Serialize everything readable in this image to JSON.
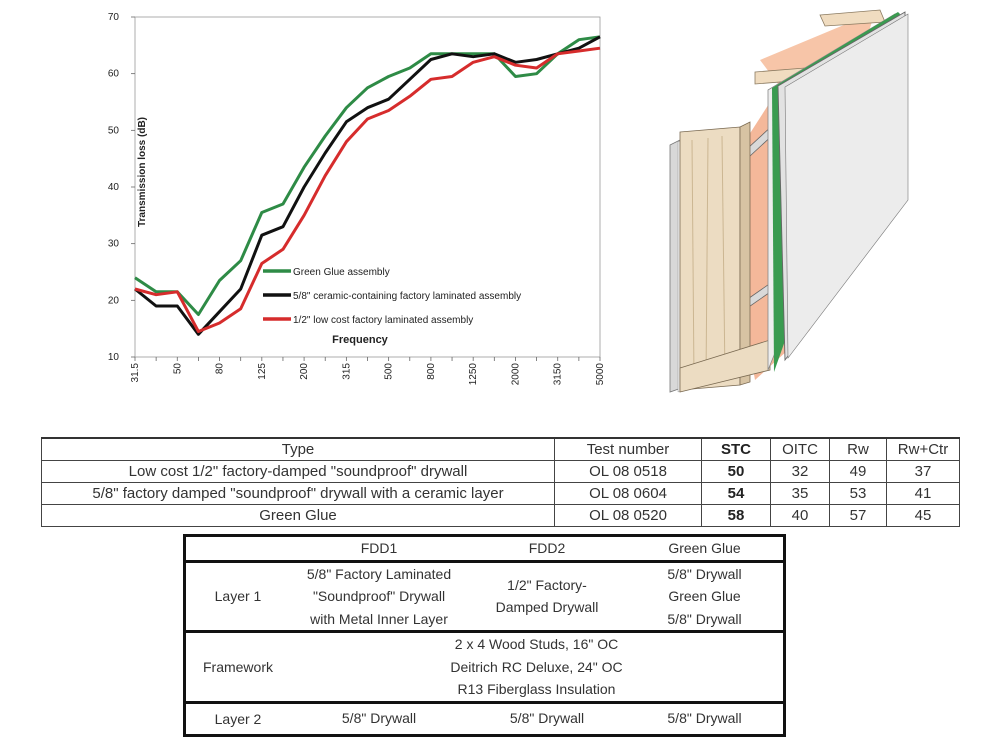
{
  "chart_data": {
    "type": "line",
    "title": "",
    "xlabel": "Frequency",
    "ylabel": "Transmission loss (dB)",
    "ylim": [
      10,
      70
    ],
    "yticks": [
      10,
      20,
      30,
      40,
      50,
      60,
      70
    ],
    "x": [
      "31.5",
      "40",
      "50",
      "63",
      "80",
      "100",
      "125",
      "160",
      "200",
      "250",
      "315",
      "400",
      "500",
      "630",
      "800",
      "1000",
      "1250",
      "1600",
      "2000",
      "2500",
      "3150",
      "4000",
      "5000"
    ],
    "xtick_labels": [
      "31.5",
      "50",
      "80",
      "125",
      "200",
      "315",
      "500",
      "800",
      "1250",
      "2000",
      "3150",
      "5000"
    ],
    "xtick_indices": [
      0,
      2,
      4,
      6,
      8,
      10,
      12,
      14,
      16,
      18,
      20,
      22
    ],
    "legend_position": "inside-bottom",
    "series": [
      {
        "name": "Green Glue assembly",
        "color": "#2e8b46",
        "values": [
          24,
          21.5,
          21.5,
          17.5,
          23.5,
          27,
          35.5,
          37,
          43.5,
          49,
          54,
          57.5,
          59.5,
          61,
          63.5,
          63.5,
          63.5,
          63.5,
          59.5,
          60,
          63.5,
          66,
          66.5
        ]
      },
      {
        "name": "5/8\" ceramic-containing factory laminated assembly",
        "color": "#111111",
        "values": [
          22,
          19,
          19,
          14,
          18,
          22,
          31.5,
          33,
          40,
          46,
          51.5,
          54,
          55.5,
          59,
          62.5,
          63.5,
          63,
          63.5,
          62,
          62.5,
          63.5,
          64.5,
          66.5
        ]
      },
      {
        "name": "1/2\" low cost factory laminated assembly",
        "color": "#d62c2c",
        "values": [
          22,
          21,
          21.5,
          14.5,
          16,
          18.5,
          26.5,
          29,
          35,
          42,
          48,
          52,
          53.5,
          56,
          59,
          59.5,
          62,
          63,
          61.5,
          61,
          63.5,
          64,
          64.5
        ]
      }
    ]
  },
  "results_table": {
    "headers": [
      "Type",
      "Test number",
      "STC",
      "OITC",
      "Rw",
      "Rw+Ctr"
    ],
    "rows": [
      [
        "Low cost 1/2\" factory-damped \"soundproof\" drywall",
        "OL 08 0518",
        "50",
        "32",
        "49",
        "37"
      ],
      [
        "5/8\" factory damped \"soundproof\" drywall with a ceramic layer",
        "OL 08 0604",
        "54",
        "35",
        "53",
        "41"
      ],
      [
        "Green Glue",
        "OL 08 0520",
        "58",
        "40",
        "57",
        "45"
      ]
    ]
  },
  "construction_table": {
    "headers": [
      "",
      "FDD1",
      "FDD2",
      "Green Glue"
    ],
    "layer1": {
      "label": "Layer 1",
      "fdd1": [
        "5/8\" Factory Laminated",
        "\"Soundproof\" Drywall",
        "with Metal Inner Layer"
      ],
      "fdd2": [
        "1/2\" Factory-",
        "Damped Drywall"
      ],
      "green_glue": [
        "5/8\" Drywall",
        "Green Glue",
        "5/8\" Drywall"
      ]
    },
    "framework": {
      "label": "Framework",
      "lines": [
        "2 x 4 Wood Studs, 16\" OC",
        "Deitrich RC Deluxe, 24\" OC",
        "R13 Fiberglass Insulation"
      ]
    },
    "layer2": {
      "label": "Layer 2",
      "fdd1": "5/8\" Drywall",
      "fdd2": "5/8\" Drywall",
      "green_glue": "5/8\" Drywall"
    }
  }
}
